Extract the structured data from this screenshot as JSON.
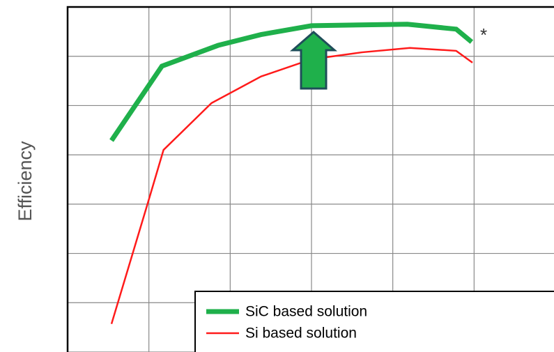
{
  "chart_data": {
    "type": "line",
    "y_label": "Efficiency",
    "annotation": "*",
    "xlim": [
      0,
      6
    ],
    "xticks": [
      0,
      1,
      2,
      3,
      4,
      5,
      6
    ],
    "ylim": [
      0,
      7
    ],
    "yticks": [
      0,
      1,
      2,
      3,
      4,
      5,
      6,
      7
    ],
    "grid": true,
    "legend": "bottom-right",
    "series": [
      {
        "name": "SiC based solution",
        "color": "#1fb04b",
        "width": 7,
        "x": [
          0.54,
          1.16,
          1.85,
          2.38,
          3.0,
          4.18,
          4.78,
          4.97
        ],
        "values": [
          4.29,
          5.8,
          6.22,
          6.44,
          6.62,
          6.65,
          6.55,
          6.29
        ]
      },
      {
        "name": "Si based solution",
        "color": "#ff1a1a",
        "width": 2.5,
        "x": [
          0.54,
          0.99,
          1.18,
          1.77,
          2.38,
          3.0,
          3.62,
          4.21,
          4.78,
          4.98
        ],
        "values": [
          0.57,
          3.04,
          4.1,
          5.05,
          5.59,
          5.94,
          6.08,
          6.17,
          6.11,
          5.87
        ]
      }
    ]
  }
}
